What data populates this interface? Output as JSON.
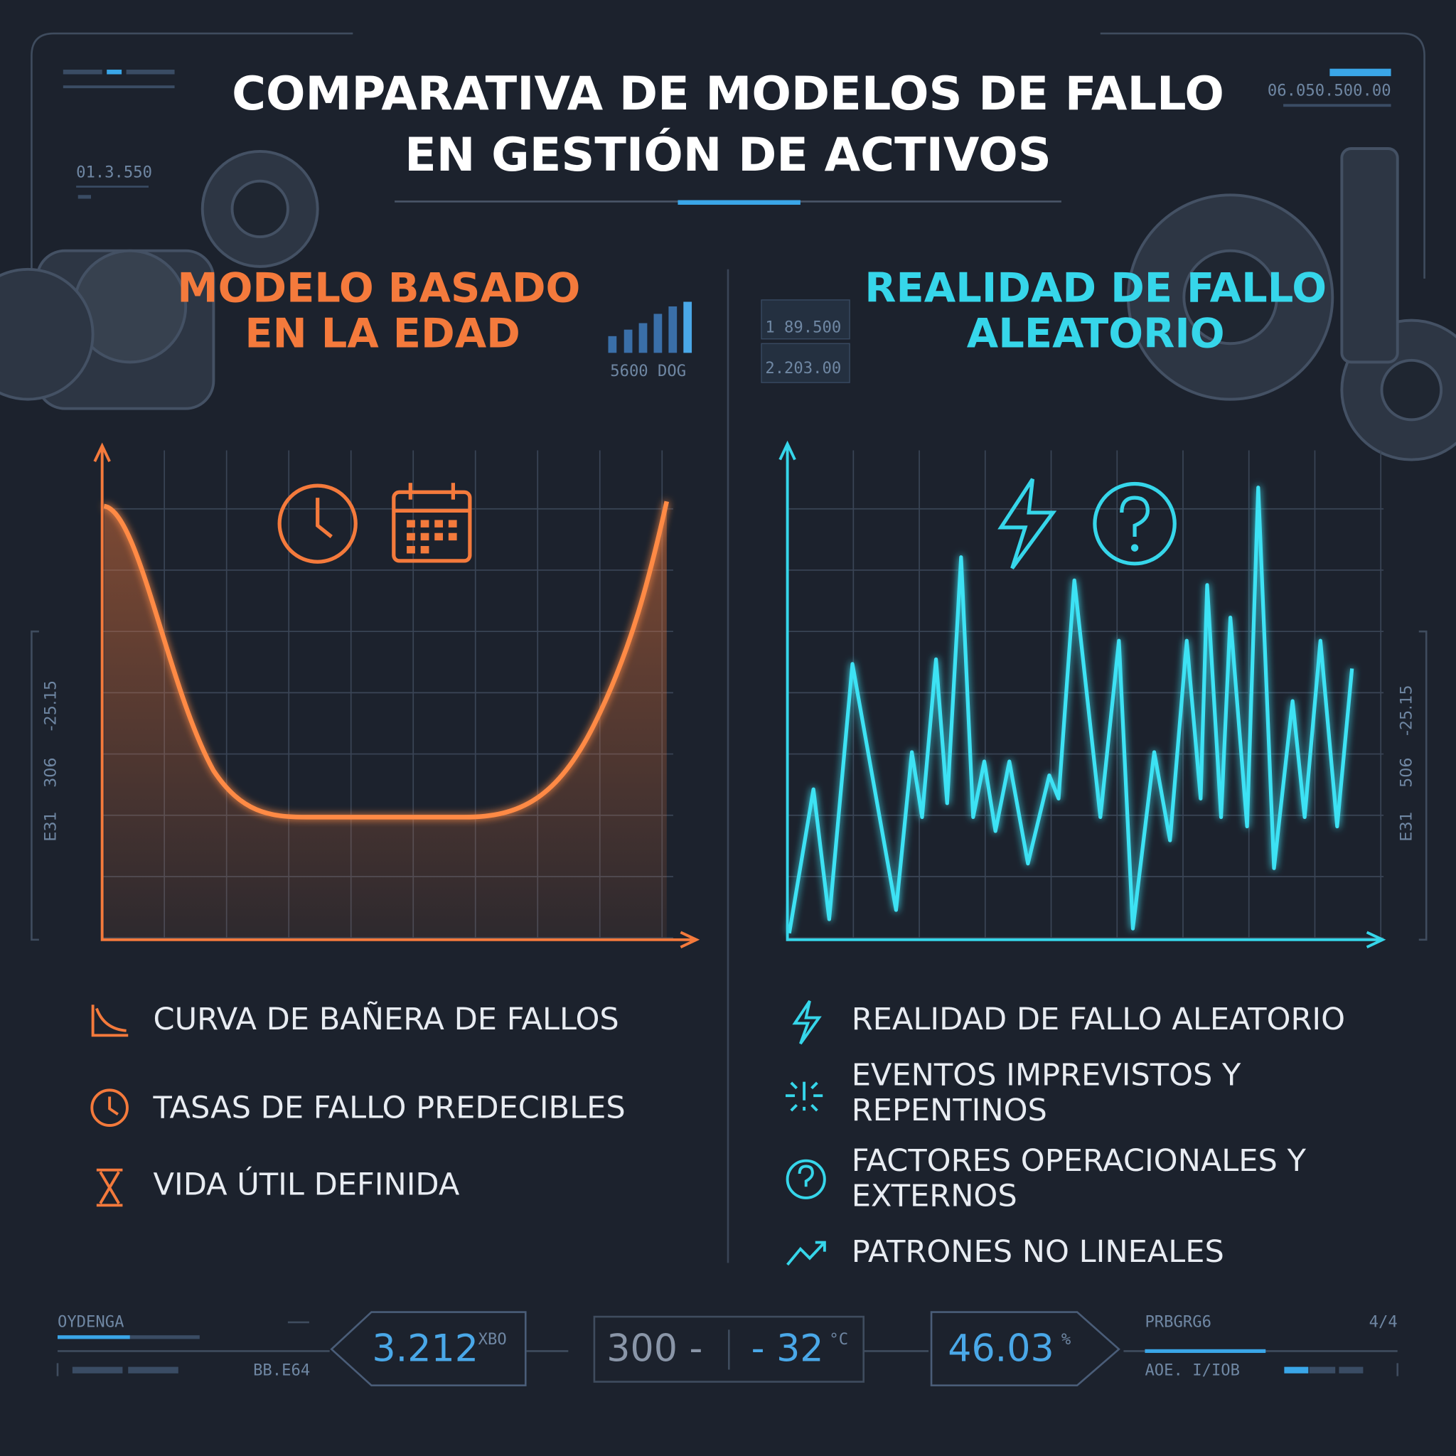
{
  "header": {
    "title": [
      "COMPARATIVA DE MODELOS DE FALLO",
      "EN GESTIÓN DE ACTIVOS"
    ]
  },
  "hud": {
    "top_left": "01.3.550",
    "top_right": "06.050.500.00",
    "left_side": [
      "306",
      "-25.15",
      "E31"
    ],
    "right_side": [
      "506",
      "-25.15",
      "E31"
    ],
    "panel": [
      "5600 DOG",
      "1 89.500",
      "2.203.00"
    ]
  },
  "left": {
    "heading": [
      "MODELO BASADO",
      "EN LA EDAD"
    ],
    "items": [
      {
        "lines": [
          "CURVA DE BAÑERA DE FALLOS"
        ]
      },
      {
        "lines": [
          "TASAS DE FALLO PREDECIBLES"
        ]
      },
      {
        "lines": [
          "VIDA ÚTIL DEFINIDA"
        ]
      }
    ]
  },
  "right": {
    "heading": [
      "REALIDAD DE FALLO",
      "ALEATORIO"
    ],
    "items": [
      {
        "lines": [
          "REALIDAD DE FALLO ALEATORIO"
        ]
      },
      {
        "lines": [
          "EVENTOS IMPREVISTOS Y",
          "REPENTINOS"
        ]
      },
      {
        "lines": [
          "FACTORES OPERACIONALES Y",
          "EXTERNOS"
        ]
      },
      {
        "lines": [
          "PATRONES NO LINEALES"
        ]
      }
    ]
  },
  "footer": {
    "left_label": "OYDENGA",
    "left_code": "BB.E64",
    "readout_1": {
      "value": "3.212",
      "unit": "XBO"
    },
    "readout_2": {
      "value": "300 -",
      "value2": "- 32",
      "unit": "°C"
    },
    "readout_3": {
      "value": "46.03",
      "unit": "%"
    },
    "right_label": "PRBGRG6",
    "right_page": "4/4",
    "right_code": "AOE. I/IOB"
  }
}
